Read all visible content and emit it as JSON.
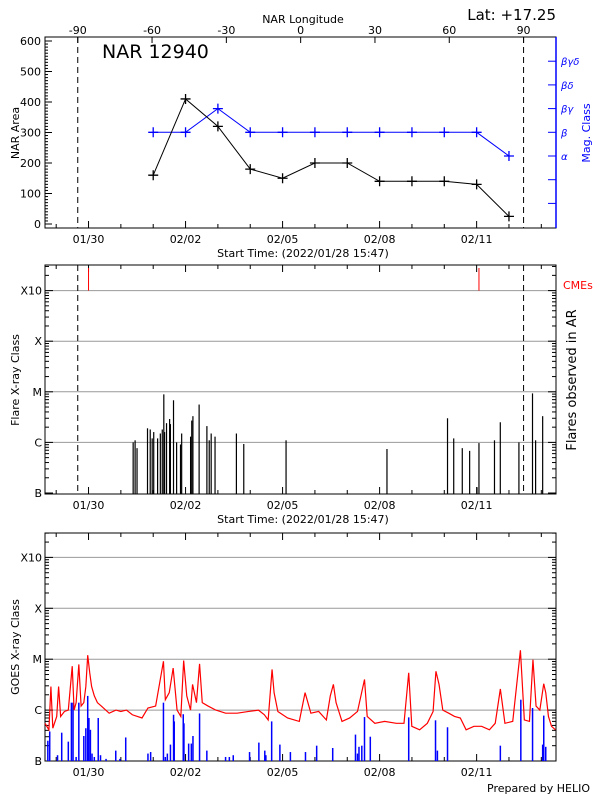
{
  "header": {
    "top_axis_label": "NAR Longitude",
    "latitude": "Lat: +17.25",
    "region": "NAR 12940",
    "footer": "Prepared by HELIO"
  },
  "colors": {
    "area": "#000000",
    "mag_class": "#0000ff",
    "cme": "#ff0000",
    "goes_long": "#ff0000",
    "goes_short": "#0000ff",
    "grid": "#999999"
  },
  "chart_data": [
    {
      "type": "line",
      "ylabel": "NAR Area",
      "y2label": "Mag. Class",
      "xlabel": "Start Time: (2022/01/28 15:47)",
      "x_tick_labels": [
        "01/30",
        "02/02",
        "02/05",
        "02/08",
        "02/11"
      ],
      "x_range": [
        "01/28 15:47",
        "02/13 10:50"
      ],
      "ylim": [
        0,
        600
      ],
      "y_ticks": [
        0,
        100,
        200,
        300,
        400,
        500,
        600
      ],
      "top_axis": {
        "label": "NAR Longitude",
        "ticks": [
          -90,
          -60,
          -30,
          0,
          30,
          60,
          90
        ],
        "limb_lines": [
          "01/29 16:00",
          "02/12 10:50"
        ]
      },
      "mag_class_levels": [
        "α",
        "β",
        "βγ",
        "βδ",
        "βγδ"
      ],
      "x": [
        "02/01 00:00",
        "02/02 00:00",
        "02/03 00:00",
        "02/04 00:00",
        "02/05 00:00",
        "02/06 00:00",
        "02/07 00:00",
        "02/08 00:00",
        "02/09 00:00",
        "02/10 00:00",
        "02/11 00:00",
        "02/12 00:00"
      ],
      "series": [
        {
          "name": "NAR Area",
          "values": [
            160,
            410,
            320,
            180,
            150,
            200,
            200,
            140,
            140,
            140,
            130,
            25
          ]
        },
        {
          "name": "Mag. Class",
          "values": [
            "β",
            "β",
            "βγ",
            "β",
            "β",
            "β",
            "β",
            "β",
            "β",
            "β",
            "β",
            "α"
          ]
        }
      ]
    },
    {
      "type": "bar",
      "ylabel": "Flare X-ray Class",
      "y2label": "Flares observed in AR",
      "xlabel": "Start Time: (2022/01/28 15:47)",
      "x_tick_labels": [
        "01/30",
        "02/02",
        "02/05",
        "02/08",
        "02/11"
      ],
      "y_tick_labels": [
        "B",
        "C",
        "M",
        "X",
        "X10"
      ],
      "cme_label": "CMEs",
      "cmes": [
        "01/30 00:00",
        "02/11 01:44"
      ],
      "flares": [
        [
          "01/31 09:07",
          "C1.0"
        ],
        [
          "01/31 10:34",
          "C1.1"
        ],
        [
          "01/31 12:00",
          "B7.7"
        ],
        [
          "01/31 19:46",
          "C1.9"
        ],
        [
          "01/31 21:47",
          "C1.8"
        ],
        [
          "01/31 23:14",
          "C1.2"
        ],
        [
          "02/01 00:23",
          "C1.6"
        ],
        [
          "02/01 03:16",
          "C1.2"
        ],
        [
          "02/01 05:17",
          "C1.5"
        ],
        [
          "02/01 06:43",
          "C1.8"
        ],
        [
          "02/01 07:52",
          "C8.9"
        ],
        [
          "02/01 08:27",
          "C1.6"
        ],
        [
          "02/01 09:53",
          "C2.4"
        ],
        [
          "02/01 12:11",
          "C2.9"
        ],
        [
          "02/01 12:46",
          "C2.3"
        ],
        [
          "02/01 15:04",
          "C6.8"
        ],
        [
          "02/01 17:22",
          "C1.0"
        ],
        [
          "02/01 20:15",
          "B9.1"
        ],
        [
          "02/01 21:07",
          "C1.5"
        ],
        [
          "02/02 03:44",
          "C1.3"
        ],
        [
          "02/02 04:36",
          "C2.7"
        ],
        [
          "02/02 05:28",
          "C3.3"
        ],
        [
          "02/02 10:04",
          "C5.6"
        ],
        [
          "02/02 15:50",
          "C2.1"
        ],
        [
          "02/02 17:34",
          "C1.1"
        ],
        [
          "02/02 19:01",
          "C1.5"
        ],
        [
          "02/02 21:53",
          "C1.3"
        ],
        [
          "02/03 13:44",
          "C1.5"
        ],
        [
          "02/03 19:12",
          "B9.3"
        ],
        [
          "02/05 02:35",
          "C1.1"
        ],
        [
          "02/08 05:28",
          "B7.4"
        ],
        [
          "02/10 02:24",
          "C3.0"
        ],
        [
          "02/10 07:00",
          "C1.2"
        ],
        [
          "02/10 13:21",
          "B7.7"
        ],
        [
          "02/10 18:49",
          "B6.8"
        ],
        [
          "02/11 00:17",
          "B1.3"
        ],
        [
          "02/11 01:44",
          "B9.7"
        ],
        [
          "02/11 13:15",
          "C1.1"
        ],
        [
          "02/11 17:34",
          "C2.5"
        ],
        [
          "02/12 07:23",
          "C1.0"
        ],
        [
          "02/12 17:28",
          "C9.3"
        ],
        [
          "02/12 19:46",
          "C1.1"
        ],
        [
          "02/13 01:00",
          "C3.3"
        ]
      ]
    },
    {
      "type": "line",
      "ylabel": "GOES X-ray Class",
      "x_tick_labels": [
        "01/30",
        "02/02",
        "02/05",
        "02/08",
        "02/11"
      ],
      "y_tick_labels": [
        "B",
        "C",
        "M",
        "X",
        "X10"
      ],
      "long_channel": [
        [
          "01/28 15:42",
          "B5.5"
        ],
        [
          "01/28 18:36",
          "B4.1"
        ],
        [
          "01/28 20:05",
          "C2.9"
        ],
        [
          "01/28 21:30",
          "B4.4"
        ],
        [
          "01/29 00:24",
          "B7.5"
        ],
        [
          "01/29 01:48",
          "C2.9"
        ],
        [
          "01/29 03:18",
          "B7.5"
        ],
        [
          "01/29 06:06",
          "B9.4"
        ],
        [
          "01/29 09:00",
          "C1.0"
        ],
        [
          "01/29 11:54",
          "C7.3"
        ],
        [
          "01/29 13:18",
          "C1.0"
        ],
        [
          "01/29 14:48",
          "C1.4"
        ],
        [
          "01/29 16:48",
          "C7.9"
        ],
        [
          "01/29 18:30",
          "C1.2"
        ],
        [
          "01/29 20:30",
          "C1.4"
        ],
        [
          "01/29 22:00",
          "C2.9"
        ],
        [
          "01/29 23:24",
          "M1.2"
        ],
        [
          "01/30 00:54",
          "C5.4"
        ],
        [
          "01/30 02:18",
          "C2.9"
        ],
        [
          "01/30 04:18",
          "C1.9"
        ],
        [
          "01/30 06:36",
          "C1.4"
        ],
        [
          "01/30 09:30",
          "C1.2"
        ],
        [
          "01/30 15:18",
          "B8.7"
        ],
        [
          "01/30 20:24",
          "C1.0"
        ],
        [
          "01/30 23:54",
          "B9.4"
        ],
        [
          "01/31 04:12",
          "C1.0"
        ],
        [
          "01/31 08:30",
          "B8.1"
        ],
        [
          "01/31 15:42",
          "B7.0"
        ],
        [
          "01/31 20:06",
          "C1.1"
        ],
        [
          "02/01 01:48",
          "C1.2"
        ],
        [
          "02/01 07:36",
          "C9.1"
        ],
        [
          "02/01 09:00",
          "C1.6"
        ],
        [
          "02/01 11:54",
          "C2.2"
        ],
        [
          "02/01 14:48",
          "C6.7"
        ],
        [
          "02/01 17:42",
          "C1.0"
        ],
        [
          "02/01 20:30",
          "B7.5"
        ],
        [
          "02/01 22:36",
          "C9.4"
        ],
        [
          "02/02 00:54",
          "C1.9"
        ],
        [
          "02/02 03:42",
          "C1.0"
        ],
        [
          "02/02 05:12",
          "C3.2"
        ],
        [
          "02/02 08:06",
          "C1.4"
        ],
        [
          "02/02 10:24",
          "C8.1"
        ],
        [
          "02/02 12:24",
          "C1.4"
        ],
        [
          "02/02 16:42",
          "C1.2"
        ],
        [
          "02/02 22:30",
          "C1.0"
        ],
        [
          "02/03 05:42",
          "B8.7"
        ],
        [
          "02/03 14:18",
          "B8.7"
        ],
        [
          "02/03 22:54",
          "B9.4"
        ],
        [
          "02/04 06:06",
          "C1.0"
        ],
        [
          "02/04 10:30",
          "B8.1"
        ],
        [
          "02/04 13:18",
          "B6.4"
        ],
        [
          "02/04 16:12",
          "C6.3"
        ],
        [
          "02/04 17:42",
          "C2.2"
        ],
        [
          "02/04 20:30",
          "B9.4"
        ],
        [
          "02/05 03:42",
          "B7.0"
        ],
        [
          "02/05 12:24",
          "B6.0"
        ],
        [
          "02/05 16:42",
          "C2.2"
        ],
        [
          "02/05 21:00",
          "B8.7"
        ],
        [
          "02/06 02:48",
          "B9.4"
        ],
        [
          "02/06 08:30",
          "B6.4"
        ],
        [
          "02/06 11:24",
          "C1.9"
        ],
        [
          "02/06 13:42",
          "C3.2"
        ],
        [
          "02/06 15:42",
          "C1.4"
        ],
        [
          "02/06 20:06",
          "B6.0"
        ],
        [
          "02/07 01:48",
          "B7.0"
        ],
        [
          "02/07 07:36",
          "B9.4"
        ],
        [
          "02/07 12:48",
          "C4.0"
        ],
        [
          "02/07 14:48",
          "B7.5"
        ],
        [
          "02/07 20:30",
          "B5.5"
        ],
        [
          "02/08 03:42",
          "B6.0"
        ],
        [
          "02/08 12:24",
          "B5.5"
        ],
        [
          "02/08 18:06",
          "B5.5"
        ],
        [
          "02/08 21:36",
          "C5.4"
        ],
        [
          "02/08 23:54",
          "B4.8"
        ],
        [
          "02/09 05:42",
          "B4.1"
        ],
        [
          "02/09 11:24",
          "B5.5"
        ],
        [
          "02/09 15:42",
          "B9.4"
        ],
        [
          "02/09 17:48",
          "C5.8"
        ],
        [
          "02/09 20:06",
          "C3.2"
        ],
        [
          "02/09 22:54",
          "C1.0"
        ],
        [
          "02/10 03:18",
          "B8.7"
        ],
        [
          "02/10 07:36",
          "B7.5"
        ],
        [
          "02/10 11:54",
          "B7.0"
        ],
        [
          "02/10 16:12",
          "B4.1"
        ],
        [
          "02/10 22:00",
          "B4.8"
        ],
        [
          "02/11 03:42",
          "B4.8"
        ],
        [
          "02/11 09:30",
          "B4.1"
        ],
        [
          "02/11 13:48",
          "B5.5"
        ],
        [
          "02/11 17:36",
          "C2.6"
        ],
        [
          "02/11 21:00",
          "B5.5"
        ],
        [
          "02/12 02:48",
          "B6.0"
        ],
        [
          "02/12 08:30",
          "M1.5"
        ],
        [
          "02/12 11:24",
          "B6.4"
        ],
        [
          "02/12 15:12",
          "B6.0"
        ],
        [
          "02/12 17:48",
          "C9.8"
        ],
        [
          "02/12 20:06",
          "C1.2"
        ],
        [
          "02/12 22:54",
          "C1.0"
        ],
        [
          "02/13 01:48",
          "C3.3"
        ],
        [
          "02/13 03:18",
          "C2.2"
        ],
        [
          "02/13 05:18",
          "B7.5"
        ],
        [
          "02/13 07:36",
          "B4.8"
        ],
        [
          "02/13 10:30",
          "B4.1"
        ]
      ],
      "short_channel": [
        [
          "01/28 17:48",
          "B2.5"
        ],
        [
          "01/28 19:12",
          "B3.8"
        ],
        [
          "01/29 01:00",
          "B1.3"
        ],
        [
          "01/29 04:06",
          "B3.6"
        ],
        [
          "01/29 09:00",
          "B2.4"
        ],
        [
          "01/29 11:18",
          "C1.4"
        ],
        [
          "01/29 12:30",
          "C1.4"
        ],
        [
          "01/29 14:48",
          "B1.2"
        ],
        [
          "01/29 16:48",
          "C1.4"
        ],
        [
          "01/29 20:30",
          "B3.1"
        ],
        [
          "01/29 22:00",
          "B4.4"
        ],
        [
          "01/29 23:24",
          "C1.9"
        ],
        [
          "01/30 00:18",
          "B7.0"
        ],
        [
          "01/30 01:24",
          "B4.1"
        ],
        [
          "01/30 02:36",
          "B1.4"
        ],
        [
          "01/30 04:18",
          "B1.2"
        ],
        [
          "01/30 07:12",
          "B7.0"
        ],
        [
          "01/30 08:54",
          "B1.3"
        ],
        [
          "01/30 13:00",
          "B1.1"
        ],
        [
          "01/30 20:12",
          "B1.6"
        ],
        [
          "01/30 23:18",
          "B1.1"
        ],
        [
          "01/31 03:36",
          "B2.9"
        ],
        [
          "01/31 20:06",
          "B1.4"
        ],
        [
          "01/31 22:06",
          "B1.5"
        ],
        [
          "02/01 07:36",
          "C1.4"
        ],
        [
          "02/01 09:00",
          "B1.2"
        ],
        [
          "02/01 10:30",
          "B1.4"
        ],
        [
          "02/01 12:48",
          "B2.1"
        ],
        [
          "02/01 15:06",
          "B8.1"
        ],
        [
          "02/01 15:36",
          "B6.0"
        ],
        [
          "02/01 22:18",
          "B8.3"
        ],
        [
          "02/01 22:48",
          "B5.5"
        ],
        [
          "02/02 02:18",
          "B2.2"
        ],
        [
          "02/02 04:18",
          "B2.2"
        ],
        [
          "02/02 05:30",
          "B3.1"
        ],
        [
          "02/02 10:24",
          "B8.6"
        ],
        [
          "02/02 15:48",
          "B1.6"
        ],
        [
          "02/03 05:42",
          "B1.2"
        ],
        [
          "02/03 08:30",
          "B1.2"
        ],
        [
          "02/03 11:24",
          "B1.3"
        ],
        [
          "02/03 23:30",
          "B1.5"
        ],
        [
          "02/04 06:24",
          "B2.3"
        ],
        [
          "02/04 10:48",
          "B1.6"
        ],
        [
          "02/04 11:36",
          "B1.3"
        ],
        [
          "02/04 15:54",
          "B6.0"
        ],
        [
          "02/04 22:00",
          "B2.1"
        ],
        [
          "02/05 05:48",
          "B1.5"
        ],
        [
          "02/05 17:00",
          "B1.5"
        ],
        [
          "02/06 01:18",
          "B2.0"
        ],
        [
          "02/06 13:12",
          "B1.8"
        ],
        [
          "02/07 06:06",
          "B3.3"
        ],
        [
          "02/07 07:36",
          "B1.4"
        ],
        [
          "02/07 08:42",
          "B1.9"
        ],
        [
          "02/07 10:48",
          "B2.0"
        ],
        [
          "02/07 12:48",
          "B7.3"
        ],
        [
          "02/07 17:06",
          "B3.0"
        ],
        [
          "02/08 21:36",
          "B7.2"
        ],
        [
          "02/09 17:30",
          "B6.3"
        ],
        [
          "02/09 18:54",
          "B1.6"
        ],
        [
          "02/10 02:24",
          "B4.6"
        ],
        [
          "02/11 17:36",
          "B2.0"
        ],
        [
          "02/12 08:48",
          "C1.6"
        ],
        [
          "02/12 17:30",
          "C1.1"
        ],
        [
          "02/13 01:00",
          "B2.1"
        ],
        [
          "02/13 01:48",
          "B7.8"
        ],
        [
          "02/13 03:18",
          "B1.9"
        ]
      ]
    }
  ]
}
